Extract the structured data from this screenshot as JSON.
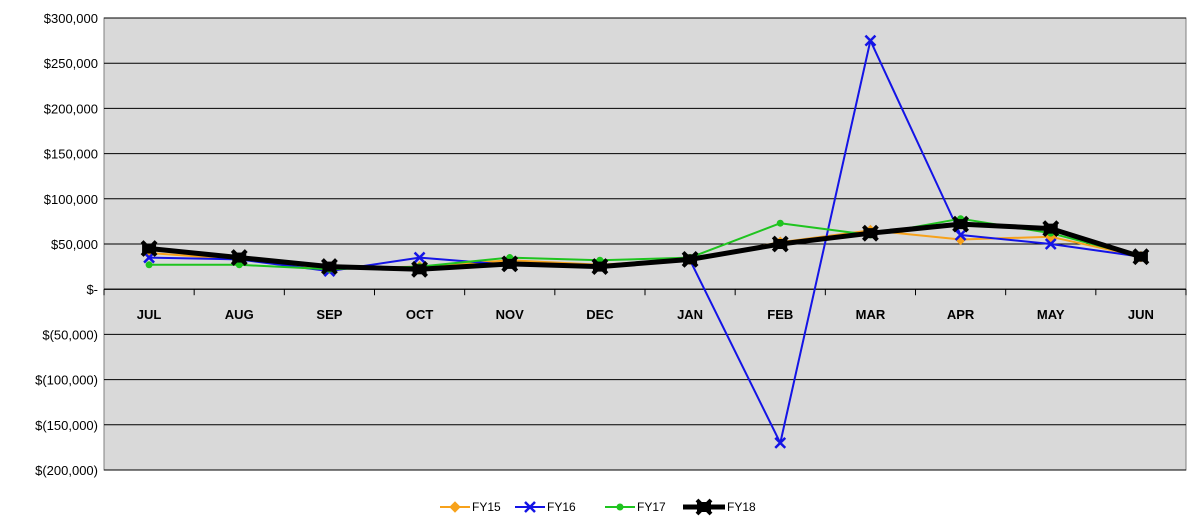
{
  "chart_data": {
    "type": "line",
    "categories": [
      "JUL",
      "AUG",
      "SEP",
      "OCT",
      "NOV",
      "DEC",
      "JAN",
      "FEB",
      "MAR",
      "APR",
      "MAY",
      "JUN"
    ],
    "ylim": [
      -200000,
      300000
    ],
    "yticks": [
      300000,
      250000,
      200000,
      150000,
      100000,
      50000,
      0,
      -50000,
      -100000,
      -150000,
      -200000
    ],
    "ytick_labels": [
      "$300,000",
      "$250,000",
      "$200,000",
      "$150,000",
      "$100,000",
      "$50,000",
      "$-",
      "$(50,000)",
      "$(100,000)",
      "$(150,000)",
      "$(200,000)"
    ],
    "grid": true,
    "legend_position": "bottom",
    "plot_background": "#d9d9d9",
    "series": [
      {
        "name": "FY15",
        "color": "#f7a21b",
        "marker": "diamond",
        "values": [
          40000,
          33000,
          23000,
          25000,
          32000,
          27000,
          33000,
          52000,
          65000,
          55000,
          58000,
          36000
        ]
      },
      {
        "name": "FY16",
        "color": "#1414e6",
        "marker": "x",
        "values": [
          35000,
          33000,
          20000,
          35000,
          27000,
          25000,
          32000,
          -170000,
          275000,
          60000,
          50000,
          36000
        ]
      },
      {
        "name": "FY17",
        "color": "#1fc41f",
        "marker": "dot",
        "values": [
          27000,
          27000,
          22000,
          25000,
          35000,
          32000,
          35000,
          73000,
          60000,
          78000,
          62000,
          36000
        ]
      },
      {
        "name": "FY18",
        "color": "#000000",
        "marker": "x-thick",
        "values": [
          45000,
          35000,
          25000,
          22000,
          28000,
          25000,
          33000,
          50000,
          62000,
          72000,
          67000,
          36000
        ]
      }
    ]
  }
}
